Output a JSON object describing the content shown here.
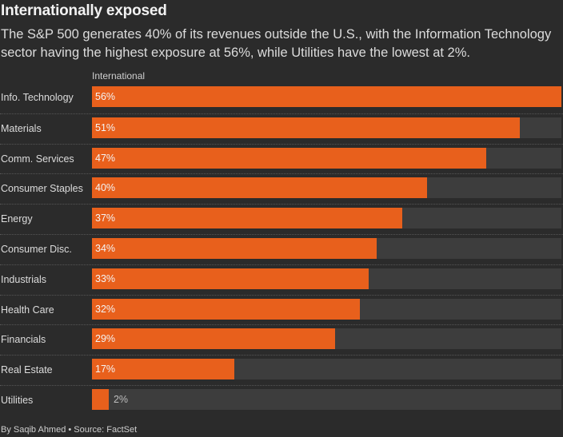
{
  "title": "Internationally exposed",
  "subtitle": "The S&P 500 generates 40% of its revenues outside the U.S., with the Information Technology sector having the highest exposure at 56%, while Utilities have the lowest at 2%.",
  "footer": "By Saqib Ahmed • Source: FactSet",
  "colors": {
    "bar": "#e8601c",
    "track": "#3d3d3d",
    "background": "#2b2b2b"
  },
  "chart_data": {
    "type": "bar",
    "orientation": "horizontal",
    "series_header": "International",
    "xlim": [
      0,
      56
    ],
    "grid": false,
    "categories": [
      "Info. Technology",
      "Materials",
      "Comm. Services",
      "Consumer Staples",
      "Energy",
      "Consumer Disc.",
      "Industrials",
      "Health Care",
      "Financials",
      "Real Estate",
      "Utilities"
    ],
    "values": [
      56,
      51,
      47,
      40,
      37,
      34,
      33,
      32,
      29,
      17,
      2
    ],
    "value_labels": [
      "56%",
      "51%",
      "47%",
      "40%",
      "37%",
      "34%",
      "33%",
      "32%",
      "29%",
      "17%",
      "2%"
    ]
  }
}
